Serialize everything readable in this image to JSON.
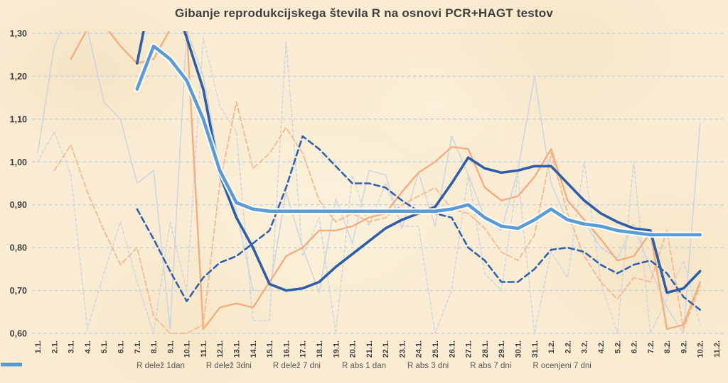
{
  "chart_data": {
    "type": "line",
    "title": "Gibanje reprodukcijskega števila R na osnovi PCR+HAGT testov",
    "xlabel": "",
    "ylabel": "",
    "ylim": [
      0.6,
      1.3
    ],
    "grid": "horizontal-dashed",
    "legend_position": "bottom",
    "background_color": "#f9ecd2",
    "grid_color": "#c9d2e0",
    "axis_text_color": "#3f3f3f",
    "legend_text_color": "#595959",
    "title_color": "#404040",
    "y_ticks": [
      {
        "value": 1.3,
        "label": "1,30"
      },
      {
        "value": 1.2,
        "label": "1,20"
      },
      {
        "value": 1.1,
        "label": "1,10"
      },
      {
        "value": 1.0,
        "label": "1,00"
      },
      {
        "value": 0.9,
        "label": "0,90"
      },
      {
        "value": 0.8,
        "label": "0,80"
      },
      {
        "value": 0.7,
        "label": "0,70"
      },
      {
        "value": 0.6,
        "label": "0,60"
      }
    ],
    "x_labels": [
      "1.1.",
      "2.1.",
      "3.1.",
      "4.1.",
      "5.1.",
      "6.1.",
      "7.1.",
      "8.1.",
      "9.1.",
      "10.1.",
      "11.1.",
      "12.1.",
      "13.1.",
      "14.1.",
      "15.1.",
      "16.1.",
      "17.1.",
      "18.1.",
      "19.1.",
      "20.1.",
      "21.1.",
      "22.1.",
      "23.1.",
      "24.1.",
      "25.1.",
      "26.1.",
      "27.1.",
      "28.1.",
      "29.1.",
      "30.1.",
      "31.1.",
      "1.2.",
      "2.2.",
      "3.2.",
      "4.2.",
      "5.2.",
      "6.2.",
      "7.2.",
      "8.2.",
      "9.2.",
      "10.2.",
      "11.2."
    ],
    "series": [
      {
        "name": "R delež 1dan",
        "color": "#ccd4e2",
        "style": "dashed",
        "dash": "4 3",
        "width": 1.4,
        "values": [
          1.0,
          1.07,
          0.97,
          0.61,
          0.74,
          0.86,
          0.72,
          0.6,
          0.86,
          0.7,
          1.29,
          1.13,
          1.07,
          0.63,
          0.63,
          1.28,
          0.78,
          0.87,
          0.6,
          0.97,
          0.85,
          0.95,
          0.85,
          0.85,
          0.6,
          0.7,
          0.97,
          0.74,
          0.7,
          0.97,
          0.6,
          0.79,
          0.73,
          1.0,
          0.72,
          0.6,
          1.0,
          0.6,
          0.68,
          0.77,
          0.62,
          null
        ]
      },
      {
        "name": "R delež 3dni",
        "color": "#f3bd97",
        "style": "dashed",
        "dash": "7 4",
        "width": 2,
        "values": [
          null,
          0.98,
          1.04,
          0.93,
          0.84,
          0.76,
          0.8,
          0.64,
          0.6,
          0.6,
          0.62,
          0.95,
          1.14,
          0.985,
          1.02,
          1.08,
          1.02,
          0.91,
          0.86,
          0.88,
          0.86,
          0.87,
          0.9,
          0.92,
          0.94,
          0.89,
          0.88,
          0.845,
          0.79,
          0.77,
          0.83,
          1.02,
          0.88,
          0.78,
          0.72,
          0.68,
          0.73,
          0.72,
          0.84,
          0.61,
          0.71,
          null
        ]
      },
      {
        "name": "R delež 7 dni",
        "color": "#3161b1",
        "style": "dashed",
        "dash": "8 5",
        "width": 2.6,
        "values": [
          null,
          null,
          null,
          null,
          null,
          null,
          0.89,
          0.82,
          0.745,
          0.675,
          0.73,
          0.765,
          0.78,
          0.81,
          0.84,
          0.94,
          1.06,
          1.03,
          0.99,
          0.95,
          0.95,
          0.94,
          0.91,
          0.885,
          0.88,
          0.87,
          0.8,
          0.77,
          0.72,
          0.72,
          0.75,
          0.795,
          0.8,
          0.79,
          0.76,
          0.74,
          0.76,
          0.77,
          0.74,
          0.685,
          0.655,
          null
        ]
      },
      {
        "name": "R abs 1 dan",
        "color": "#ccd4e2",
        "style": "solid",
        "dash": null,
        "width": 1.5,
        "values": [
          1.02,
          1.27,
          1.36,
          1.31,
          1.14,
          1.1,
          0.95,
          0.98,
          0.61,
          1.31,
          1.2,
          0.99,
          0.885,
          0.7,
          0.7,
          0.93,
          0.8,
          0.695,
          0.915,
          0.81,
          0.98,
          0.97,
          0.845,
          0.975,
          0.85,
          1.06,
          0.97,
          0.87,
          0.84,
          0.98,
          1.2,
          0.95,
          0.86,
          0.86,
          0.8,
          0.775,
          0.855,
          0.75,
          0.66,
          0.6,
          1.09,
          null
        ]
      },
      {
        "name": "R abs 3 dni",
        "color": "#f4ad7f",
        "style": "solid",
        "dash": null,
        "width": 2.4,
        "values": [
          null,
          null,
          1.24,
          1.31,
          1.32,
          1.27,
          1.23,
          1.24,
          1.31,
          1.31,
          0.61,
          0.66,
          0.67,
          0.66,
          0.72,
          0.78,
          0.8,
          0.84,
          0.84,
          0.85,
          0.87,
          0.88,
          0.93,
          0.975,
          1.0,
          1.035,
          1.03,
          0.94,
          0.91,
          0.92,
          0.965,
          1.03,
          0.91,
          0.865,
          0.82,
          0.77,
          0.78,
          0.835,
          0.61,
          0.62,
          0.72,
          null
        ]
      },
      {
        "name": "R abs 7 dni",
        "color": "#2e5dab",
        "style": "solid",
        "dash": null,
        "width": 3.6,
        "values": [
          null,
          null,
          null,
          null,
          null,
          null,
          1.23,
          1.42,
          1.4,
          1.29,
          1.17,
          0.97,
          0.87,
          0.8,
          0.715,
          0.7,
          0.705,
          0.72,
          0.755,
          0.785,
          0.815,
          0.845,
          0.865,
          0.88,
          0.895,
          0.95,
          1.01,
          0.985,
          0.975,
          0.98,
          0.99,
          0.99,
          0.95,
          0.91,
          0.88,
          0.86,
          0.845,
          0.84,
          0.695,
          0.705,
          0.745,
          null
        ]
      },
      {
        "name": "R ocenjeni 7 dni",
        "color": "#5b9bd5",
        "style": "solid",
        "dash": null,
        "width": 4.6,
        "halo": true,
        "values": [
          null,
          null,
          null,
          null,
          null,
          null,
          1.17,
          1.27,
          1.24,
          1.19,
          1.1,
          0.98,
          0.905,
          0.89,
          0.885,
          0.885,
          0.885,
          0.885,
          0.885,
          0.885,
          0.885,
          0.885,
          0.885,
          0.885,
          0.885,
          0.89,
          0.9,
          0.87,
          0.85,
          0.845,
          0.865,
          0.89,
          0.865,
          0.855,
          0.85,
          0.84,
          0.835,
          0.83,
          0.83,
          0.83,
          0.83,
          null
        ]
      }
    ]
  }
}
